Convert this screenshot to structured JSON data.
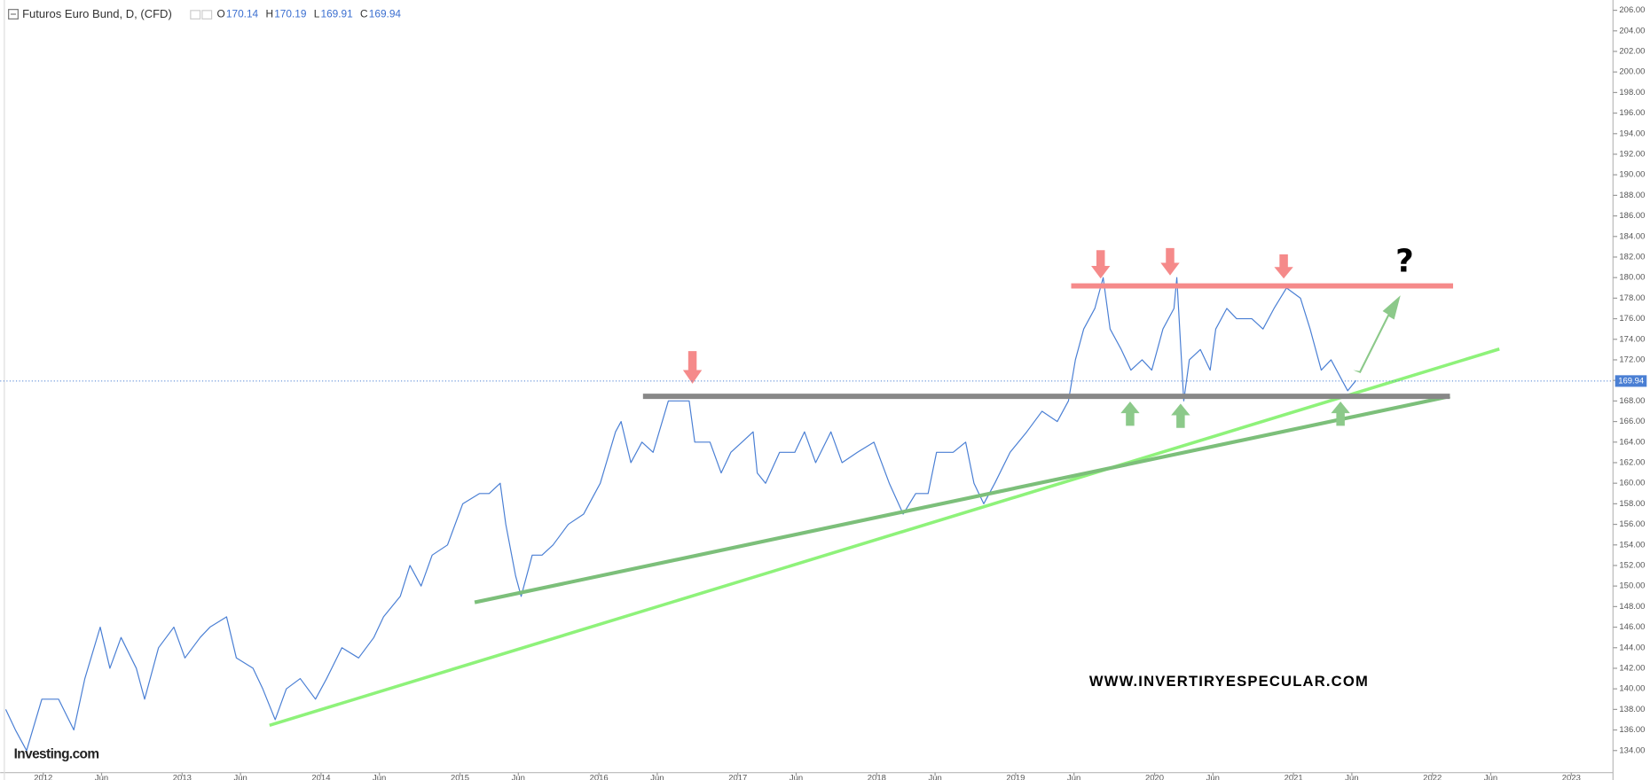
{
  "chart_data": {
    "type": "line",
    "title": "Futuros Euro Bund, D, (CFD)",
    "ohlc": [
      {
        "label": "O",
        "value": 170.14
      },
      {
        "label": "H",
        "value": 170.19
      },
      {
        "label": "L",
        "value": 169.91
      },
      {
        "label": "C",
        "value": 169.94
      }
    ],
    "watermark": "WWW.INVERTIRYESPECULAR.COM",
    "logo": "Investing.com",
    "annotation": "?",
    "color": "#4a7fd4",
    "grid": false,
    "x": [
      2011.73,
      2011.8,
      2011.88,
      2011.99,
      2012.11,
      2012.22,
      2012.3,
      2012.41,
      2012.48,
      2012.56,
      2012.67,
      2012.73,
      2012.83,
      2012.94,
      2013.02,
      2013.13,
      2013.2,
      2013.32,
      2013.39,
      2013.51,
      2013.58,
      2013.67,
      2013.75,
      2013.85,
      2013.96,
      2014.04,
      2014.15,
      2014.27,
      2014.38,
      2014.45,
      2014.57,
      2014.64,
      2014.72,
      2014.8,
      2014.91,
      2015.02,
      2015.14,
      2015.21,
      2015.29,
      2015.33,
      2015.4,
      2015.44,
      2015.52,
      2015.59,
      2015.67,
      2015.78,
      2015.89,
      2016.01,
      2016.12,
      2016.16,
      2016.23,
      2016.31,
      2016.39,
      2016.5,
      2016.61,
      2016.65,
      2016.69,
      2016.8,
      2016.88,
      2016.95,
      2017.03,
      2017.11,
      2017.14,
      2017.2,
      2017.3,
      2017.41,
      2017.48,
      2017.56,
      2017.67,
      2017.75,
      2017.86,
      2017.98,
      2018.09,
      2018.19,
      2018.28,
      2018.37,
      2018.43,
      2018.55,
      2018.64,
      2018.7,
      2018.77,
      2018.85,
      2018.96,
      2019.08,
      2019.19,
      2019.3,
      2019.38,
      2019.43,
      2019.49,
      2019.57,
      2019.63,
      2019.68,
      2019.76,
      2019.83,
      2019.91,
      2019.98,
      2020.06,
      2020.14,
      2020.16,
      2020.21,
      2020.25,
      2020.33,
      2020.4,
      2020.44,
      2020.52,
      2020.59,
      2020.7,
      2020.78,
      2020.86,
      2020.95,
      2021.05,
      2021.12,
      2021.2,
      2021.27,
      2021.35,
      2021.39,
      2021.45
    ],
    "values": [
      138,
      136,
      134,
      139,
      139,
      136,
      141,
      146,
      142,
      145,
      142,
      139,
      144,
      146,
      143,
      145,
      146,
      147,
      143,
      142,
      140,
      137,
      140,
      141,
      139,
      141,
      144,
      143,
      145,
      147,
      149,
      152,
      150,
      153,
      154,
      158,
      159,
      159,
      160,
      156,
      151,
      149,
      153,
      153,
      154,
      156,
      157,
      160,
      165,
      166,
      162,
      164,
      163,
      168,
      168,
      168,
      164,
      164,
      161,
      163,
      164,
      165,
      161,
      160,
      163,
      163,
      165,
      162,
      165,
      162,
      163,
      164,
      160,
      157,
      159,
      159,
      163,
      163,
      164,
      160,
      158,
      160,
      163,
      165,
      167,
      166,
      168,
      172,
      175,
      177,
      180,
      175,
      173,
      171,
      172,
      171,
      175,
      177,
      180,
      168,
      172,
      173,
      171,
      175,
      177,
      176,
      176,
      175,
      177,
      179,
      178,
      175,
      171,
      172,
      170,
      169,
      170
    ],
    "xlim": [
      2011.69,
      2023.3
    ],
    "ylim": [
      131.85,
      207.0
    ],
    "xticks": [
      {
        "value": 2012,
        "label": "2012"
      },
      {
        "value": 2012.42,
        "label": "Jun"
      },
      {
        "value": 2013,
        "label": "2013"
      },
      {
        "value": 2013.42,
        "label": "Jun"
      },
      {
        "value": 2014,
        "label": "2014"
      },
      {
        "value": 2014.42,
        "label": "Jun"
      },
      {
        "value": 2015,
        "label": "2015"
      },
      {
        "value": 2015.42,
        "label": "Jun"
      },
      {
        "value": 2016,
        "label": "2016"
      },
      {
        "value": 2016.42,
        "label": "Jun"
      },
      {
        "value": 2017,
        "label": "2017"
      },
      {
        "value": 2017.42,
        "label": "Jun"
      },
      {
        "value": 2018,
        "label": "2018"
      },
      {
        "value": 2018.42,
        "label": "Jun"
      },
      {
        "value": 2019,
        "label": "2019"
      },
      {
        "value": 2019.42,
        "label": "Jun"
      },
      {
        "value": 2020,
        "label": "2020"
      },
      {
        "value": 2020.42,
        "label": "Jun"
      },
      {
        "value": 2021,
        "label": "2021"
      },
      {
        "value": 2021.42,
        "label": "Jun"
      },
      {
        "value": 2022,
        "label": "2022"
      },
      {
        "value": 2022.42,
        "label": "Jun"
      },
      {
        "value": 2023,
        "label": "2023"
      }
    ],
    "yticks": [
      {
        "value": 134,
        "label": "134.00"
      },
      {
        "value": 136,
        "label": "136.00"
      },
      {
        "value": 138,
        "label": "138.00"
      },
      {
        "value": 140,
        "label": "140.00"
      },
      {
        "value": 142,
        "label": "142.00"
      },
      {
        "value": 144,
        "label": "144.00"
      },
      {
        "value": 146,
        "label": "146.00"
      },
      {
        "value": 148,
        "label": "148.00"
      },
      {
        "value": 150,
        "label": "150.00"
      },
      {
        "value": 152,
        "label": "152.00"
      },
      {
        "value": 154,
        "label": "154.00"
      },
      {
        "value": 156,
        "label": "156.00"
      },
      {
        "value": 158,
        "label": "158.00"
      },
      {
        "value": 160,
        "label": "160.00"
      },
      {
        "value": 162,
        "label": "162.00"
      },
      {
        "value": 164,
        "label": "164.00"
      },
      {
        "value": 166,
        "label": "166.00"
      },
      {
        "value": 168,
        "label": "168.00"
      },
      {
        "value": 170,
        "label": "170.00"
      },
      {
        "value": 172,
        "label": "172.00"
      },
      {
        "value": 174,
        "label": "174.00"
      },
      {
        "value": 176,
        "label": "176.00"
      },
      {
        "value": 178,
        "label": "178.00"
      },
      {
        "value": 180,
        "label": "180.00"
      },
      {
        "value": 182,
        "label": "182.00"
      },
      {
        "value": 184,
        "label": "184.00"
      },
      {
        "value": 186,
        "label": "186.00"
      },
      {
        "value": 188,
        "label": "188.00"
      },
      {
        "value": 190,
        "label": "190.00"
      },
      {
        "value": 192,
        "label": "192.00"
      },
      {
        "value": 194,
        "label": "194.00"
      },
      {
        "value": 196,
        "label": "196.00"
      },
      {
        "value": 198,
        "label": "198.00"
      },
      {
        "value": 200,
        "label": "200.00"
      },
      {
        "value": 202,
        "label": "202.00"
      },
      {
        "value": 204,
        "label": "204.00"
      },
      {
        "value": 206,
        "label": "206.00"
      }
    ]
  }
}
